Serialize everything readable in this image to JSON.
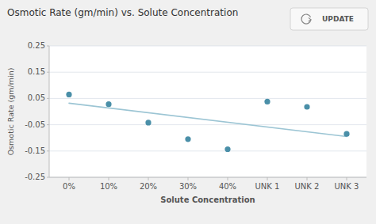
{
  "chart_data": {
    "type": "scatter",
    "title": "Osmotic Rate (gm/min) vs. Solute Concentration",
    "x_label": "Solute Concentration",
    "y_label": "Osmotic Rate (gm/min)",
    "annotations": [
      "UPDATE"
    ],
    "categories": [
      "0%",
      "10%",
      "20%",
      "30%",
      "40%",
      "UNK 1",
      "UNK 2",
      "UNK 3"
    ],
    "series": [
      {
        "type": "scatter",
        "color": "#4a8fa8",
        "marker": "circle",
        "values": [
          0.065,
          0.028,
          -0.042,
          -0.105,
          -0.143,
          0.038,
          0.018,
          -0.085
        ]
      },
      {
        "type": "line",
        "color": "#9cc5d4",
        "line_style": "solid",
        "x": [
          0,
          7
        ],
        "values": [
          0.032,
          -0.095
        ]
      }
    ],
    "ylim": [
      -0.25,
      0.25
    ],
    "yticks": [
      -0.25,
      -0.15,
      -0.05,
      0.05,
      0.15,
      0.25
    ],
    "grid": true
  }
}
